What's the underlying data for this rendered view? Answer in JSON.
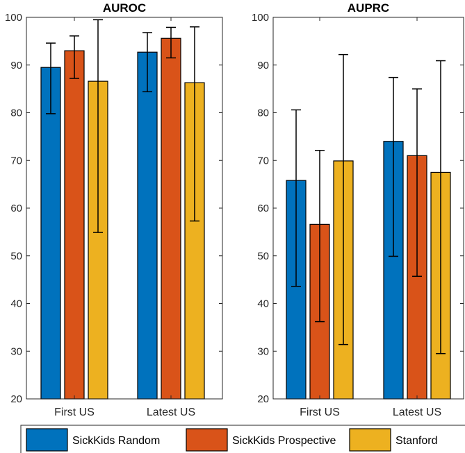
{
  "chart_data": [
    {
      "type": "bar",
      "title": "AUROC",
      "categories": [
        "First US",
        "Latest US"
      ],
      "ylim": [
        20,
        100
      ],
      "yticks": [
        20,
        30,
        40,
        50,
        60,
        70,
        80,
        90,
        100
      ],
      "series": [
        {
          "name": "SickKids Random",
          "color": "#0072BD",
          "values": [
            89.5,
            92.7
          ],
          "err_low": [
            79.8,
            84.4
          ],
          "err_high": [
            94.6,
            96.8
          ]
        },
        {
          "name": "SickKids Prospective",
          "color": "#D95319",
          "values": [
            93.0,
            95.6
          ],
          "err_low": [
            87.2,
            91.5
          ],
          "err_high": [
            96.1,
            97.9
          ]
        },
        {
          "name": "Stanford",
          "color": "#EDB120",
          "values": [
            86.6,
            86.3
          ],
          "err_low": [
            54.9,
            57.3
          ],
          "err_high": [
            99.5,
            98.0
          ]
        }
      ]
    },
    {
      "type": "bar",
      "title": "AUPRC",
      "categories": [
        "First US",
        "Latest US"
      ],
      "ylim": [
        20,
        100
      ],
      "yticks": [
        20,
        30,
        40,
        50,
        60,
        70,
        80,
        90,
        100
      ],
      "series": [
        {
          "name": "SickKids Random",
          "color": "#0072BD",
          "values": [
            65.8,
            74.0
          ],
          "err_low": [
            43.6,
            49.9
          ],
          "err_high": [
            80.6,
            87.4
          ]
        },
        {
          "name": "SickKids Prospective",
          "color": "#D95319",
          "values": [
            56.6,
            71.0
          ],
          "err_low": [
            36.2,
            45.7
          ],
          "err_high": [
            72.1,
            85.0
          ]
        },
        {
          "name": "Stanford",
          "color": "#EDB120",
          "values": [
            69.9,
            67.5
          ],
          "err_low": [
            31.4,
            29.5
          ],
          "err_high": [
            92.2,
            90.9
          ]
        }
      ]
    }
  ],
  "legend": {
    "position": "bottom",
    "items": [
      {
        "label": "SickKids Random",
        "color": "#0072BD"
      },
      {
        "label": "SickKids Prospective",
        "color": "#D95319"
      },
      {
        "label": "Stanford",
        "color": "#EDB120"
      }
    ]
  }
}
